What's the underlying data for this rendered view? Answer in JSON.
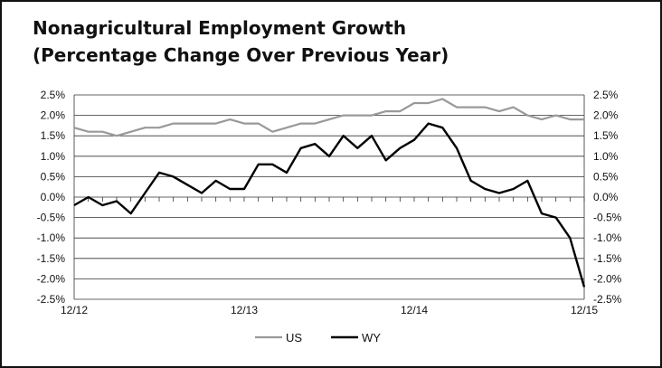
{
  "title_line1": "Nonagricultural Employment Growth",
  "title_line2": "(Percentage Change Over Previous Year)",
  "chart_data": {
    "type": "line",
    "title": "Nonagricultural Employment Growth (Percentage Change Over Previous Year)",
    "x_tick_labels": [
      "12/12",
      "12/13",
      "12/14",
      "12/15"
    ],
    "y_tick_labels": [
      "2.5%",
      "2.0%",
      "1.5%",
      "1.0%",
      "0.5%",
      "0.0%",
      "-0.5%",
      "-1.0%",
      "-1.5%",
      "-2.0%",
      "-2.5%"
    ],
    "y_right_tick_labels": [
      "2.5%",
      "2.0%",
      "1.5%",
      "1.0%",
      "0.5%",
      "0.0%",
      "-0.5%",
      "-1.0%",
      "-1.5%",
      "-2.0%",
      "-2.5%"
    ],
    "ylim": [
      -2.5,
      2.5
    ],
    "xlim": [
      "12/12",
      "12/15"
    ],
    "grid": true,
    "legend_position": "bottom",
    "x": [
      "12/12",
      "1/13",
      "2/13",
      "3/13",
      "4/13",
      "5/13",
      "6/13",
      "7/13",
      "8/13",
      "9/13",
      "10/13",
      "11/13",
      "12/13",
      "1/14",
      "2/14",
      "3/14",
      "4/14",
      "5/14",
      "6/14",
      "7/14",
      "8/14",
      "9/14",
      "10/14",
      "11/14",
      "12/14",
      "1/15",
      "2/15",
      "3/15",
      "4/15",
      "5/15",
      "6/15",
      "7/15",
      "8/15",
      "9/15",
      "10/15",
      "11/15",
      "12/15"
    ],
    "series": [
      {
        "name": "US",
        "color": "#999999",
        "values": [
          1.7,
          1.6,
          1.6,
          1.5,
          1.6,
          1.7,
          1.7,
          1.8,
          1.8,
          1.8,
          1.8,
          1.9,
          1.8,
          1.8,
          1.6,
          1.7,
          1.8,
          1.8,
          1.9,
          2.0,
          2.0,
          2.0,
          2.1,
          2.1,
          2.3,
          2.3,
          2.4,
          2.2,
          2.2,
          2.2,
          2.1,
          2.2,
          2.0,
          1.9,
          2.0,
          1.9,
          1.9
        ]
      },
      {
        "name": "WY",
        "color": "#000000",
        "values": [
          -0.2,
          0.0,
          -0.2,
          -0.1,
          -0.4,
          0.1,
          0.6,
          0.5,
          0.3,
          0.1,
          0.4,
          0.2,
          0.2,
          0.8,
          0.8,
          0.6,
          1.2,
          1.3,
          1.0,
          1.5,
          1.2,
          1.5,
          0.9,
          1.2,
          1.4,
          1.8,
          1.7,
          1.2,
          0.4,
          0.2,
          0.1,
          0.2,
          0.4,
          -0.4,
          -0.5,
          -1.0,
          -2.2
        ]
      }
    ]
  }
}
